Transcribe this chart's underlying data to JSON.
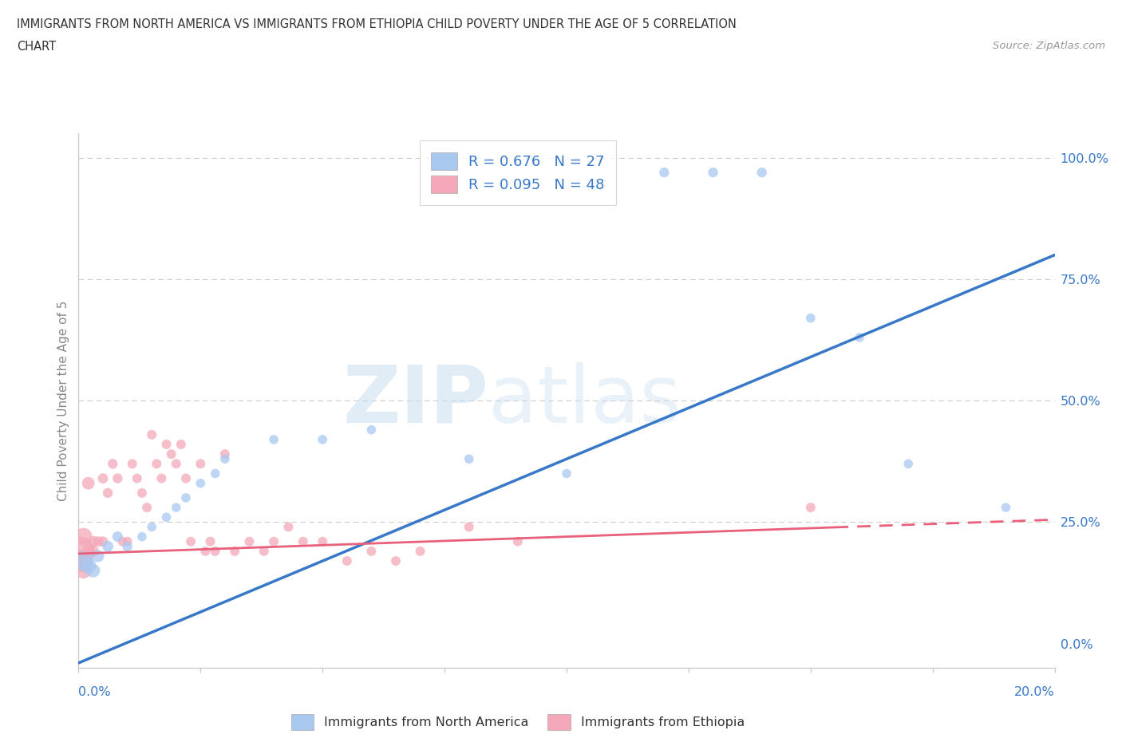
{
  "title_line1": "IMMIGRANTS FROM NORTH AMERICA VS IMMIGRANTS FROM ETHIOPIA CHILD POVERTY UNDER THE AGE OF 5 CORRELATION",
  "title_line2": "CHART",
  "source": "Source: ZipAtlas.com",
  "ylabel": "Child Poverty Under the Age of 5",
  "legend_label1": "Immigrants from North America",
  "legend_label2": "Immigrants from Ethiopia",
  "R1": 0.676,
  "N1": 27,
  "R2": 0.095,
  "N2": 48,
  "color_blue": "#a8c8f0",
  "color_pink": "#f4a8b8",
  "color_blue_dark": "#3878c8",
  "color_pink_dark": "#e8607a",
  "color_grid": "#cccccc",
  "watermark_zip": "ZIP",
  "watermark_atlas": "atlas",
  "xlim": [
    0.0,
    0.2
  ],
  "ylim": [
    -0.05,
    1.05
  ],
  "ytick_vals": [
    0.0,
    0.25,
    0.5,
    0.75,
    1.0
  ],
  "ytick_labels": [
    "0.0%",
    "25.0%",
    "50.0%",
    "75.0%",
    "100.0%"
  ],
  "na_line_x0": 0.0,
  "na_line_y0": -0.04,
  "na_line_x1": 0.2,
  "na_line_y1": 0.8,
  "eth_line_x0": 0.0,
  "eth_line_y0": 0.185,
  "eth_line_x1": 0.2,
  "eth_line_y1": 0.255,
  "north_america_x": [
    0.001,
    0.002,
    0.003,
    0.004,
    0.006,
    0.008,
    0.01,
    0.013,
    0.015,
    0.018,
    0.02,
    0.022,
    0.025,
    0.028,
    0.03,
    0.04,
    0.05,
    0.06,
    0.08,
    0.1,
    0.12,
    0.13,
    0.14,
    0.15,
    0.16,
    0.17,
    0.19
  ],
  "north_america_y": [
    0.17,
    0.16,
    0.15,
    0.18,
    0.2,
    0.22,
    0.2,
    0.22,
    0.24,
    0.26,
    0.28,
    0.3,
    0.33,
    0.35,
    0.38,
    0.42,
    0.42,
    0.44,
    0.38,
    0.35,
    0.97,
    0.97,
    0.97,
    0.67,
    0.63,
    0.37,
    0.28
  ],
  "north_america_sizes": [
    300,
    200,
    150,
    120,
    100,
    90,
    80,
    70,
    70,
    70,
    70,
    70,
    70,
    70,
    70,
    70,
    70,
    70,
    70,
    70,
    80,
    80,
    80,
    70,
    70,
    70,
    70
  ],
  "ethiopia_x": [
    0.0003,
    0.0006,
    0.001,
    0.001,
    0.002,
    0.002,
    0.003,
    0.003,
    0.004,
    0.005,
    0.005,
    0.006,
    0.007,
    0.008,
    0.009,
    0.01,
    0.011,
    0.012,
    0.013,
    0.014,
    0.015,
    0.016,
    0.017,
    0.018,
    0.019,
    0.02,
    0.021,
    0.022,
    0.023,
    0.025,
    0.026,
    0.027,
    0.028,
    0.03,
    0.032,
    0.035,
    0.038,
    0.04,
    0.043,
    0.046,
    0.05,
    0.055,
    0.06,
    0.065,
    0.07,
    0.08,
    0.09,
    0.15
  ],
  "ethiopia_y": [
    0.19,
    0.17,
    0.22,
    0.15,
    0.19,
    0.33,
    0.19,
    0.21,
    0.21,
    0.21,
    0.34,
    0.31,
    0.37,
    0.34,
    0.21,
    0.21,
    0.37,
    0.34,
    0.31,
    0.28,
    0.43,
    0.37,
    0.34,
    0.41,
    0.39,
    0.37,
    0.41,
    0.34,
    0.21,
    0.37,
    0.19,
    0.21,
    0.19,
    0.39,
    0.19,
    0.21,
    0.19,
    0.21,
    0.24,
    0.21,
    0.21,
    0.17,
    0.19,
    0.17,
    0.19,
    0.24,
    0.21,
    0.28
  ],
  "ethiopia_sizes": [
    700,
    400,
    250,
    200,
    150,
    130,
    110,
    100,
    90,
    85,
    85,
    80,
    80,
    80,
    75,
    75,
    75,
    75,
    75,
    75,
    75,
    75,
    75,
    75,
    75,
    75,
    75,
    75,
    75,
    75,
    75,
    75,
    75,
    75,
    75,
    75,
    75,
    75,
    75,
    75,
    75,
    75,
    75,
    75,
    75,
    75,
    75,
    75
  ]
}
